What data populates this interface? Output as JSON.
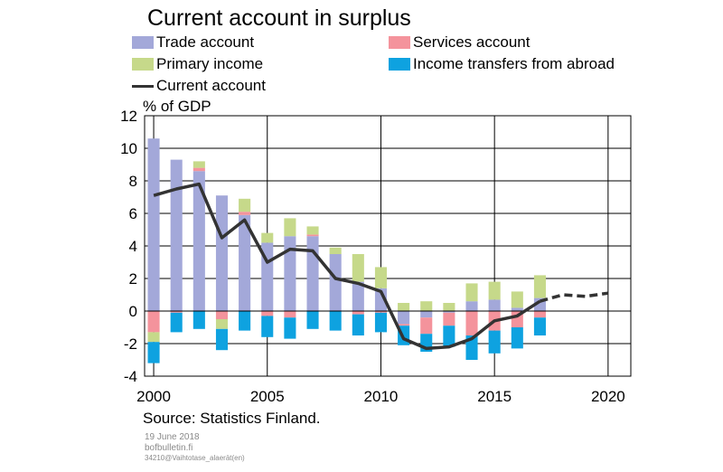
{
  "chart_data": {
    "type": "bar",
    "title": "Current account in surplus",
    "ylabel": "% of GDP",
    "source": "Source: Statistics Finland.",
    "ylim": [
      -4,
      12
    ],
    "yticks": [
      -4,
      -2,
      0,
      2,
      4,
      6,
      8,
      10,
      12
    ],
    "xlim": [
      1999.6,
      2021
    ],
    "xticks": [
      2000,
      2005,
      2010,
      2015,
      2020
    ],
    "grid": true,
    "legend_position": "top",
    "stacked": true,
    "categories": [
      2000,
      2001,
      2002,
      2003,
      2004,
      2005,
      2006,
      2007,
      2008,
      2009,
      2010,
      2011,
      2012,
      2013,
      2014,
      2015,
      2016,
      2017
    ],
    "series": [
      {
        "name": "Trade account",
        "color": "#a3a8d9",
        "kind": "bar",
        "values": [
          10.6,
          9.3,
          8.6,
          7.1,
          5.9,
          4.2,
          4.6,
          4.6,
          3.5,
          1.8,
          1.4,
          -0.8,
          -0.4,
          -0.1,
          0.6,
          0.7,
          0.2,
          0.8
        ]
      },
      {
        "name": "Services account",
        "color": "#f4939c",
        "kind": "bar",
        "values": [
          -1.3,
          -0.1,
          0.2,
          -0.5,
          0.2,
          -0.3,
          -0.4,
          0.1,
          0.0,
          -0.2,
          -0.1,
          -0.1,
          -1.0,
          -0.8,
          -1.5,
          -1.2,
          -1.0,
          -0.4
        ]
      },
      {
        "name": "Primary income",
        "color": "#c6d98a",
        "kind": "bar",
        "values": [
          -0.6,
          0.0,
          0.4,
          -0.6,
          0.8,
          0.6,
          1.1,
          0.5,
          0.4,
          1.7,
          1.3,
          0.5,
          0.6,
          0.5,
          1.1,
          1.1,
          1.0,
          1.4
        ]
      },
      {
        "name": "Income transfers from abroad",
        "color": "#0ea2e0",
        "kind": "bar",
        "values": [
          -1.3,
          -1.2,
          -1.1,
          -1.3,
          -1.2,
          -1.3,
          -1.3,
          -1.1,
          -1.2,
          -1.3,
          -1.2,
          -1.2,
          -1.1,
          -1.3,
          -1.5,
          -1.4,
          -1.3,
          -1.1
        ]
      },
      {
        "name": "Current account",
        "color": "#333333",
        "kind": "line",
        "x": [
          2000,
          2001,
          2002,
          2003,
          2004,
          2005,
          2006,
          2007,
          2008,
          2009,
          2010,
          2011,
          2012,
          2013,
          2014,
          2015,
          2016,
          2017
        ],
        "values": [
          7.1,
          7.5,
          7.8,
          4.5,
          5.6,
          3.0,
          3.8,
          3.7,
          2.0,
          1.7,
          1.2,
          -1.7,
          -2.3,
          -2.2,
          -1.7,
          -0.6,
          -0.3,
          0.6
        ]
      },
      {
        "name": "Current account forecast",
        "color": "#333333",
        "kind": "dashed",
        "x": [
          2017,
          2018,
          2019,
          2020
        ],
        "values": [
          0.6,
          1.0,
          0.9,
          1.1
        ]
      }
    ]
  },
  "legend": {
    "items": [
      {
        "label": "Trade account",
        "color": "#a3a8d9"
      },
      {
        "label": "Services account",
        "color": "#f4939c"
      },
      {
        "label": "Primary income",
        "color": "#c6d98a"
      },
      {
        "label": "Income transfers from abroad",
        "color": "#0ea2e0"
      },
      {
        "label": "Current account",
        "color": "#333333"
      }
    ]
  },
  "footer": {
    "date": "19 June 2018",
    "site": "bofbulletin.fi",
    "code": "34210@Vaihtotase_alaerät(en)"
  }
}
